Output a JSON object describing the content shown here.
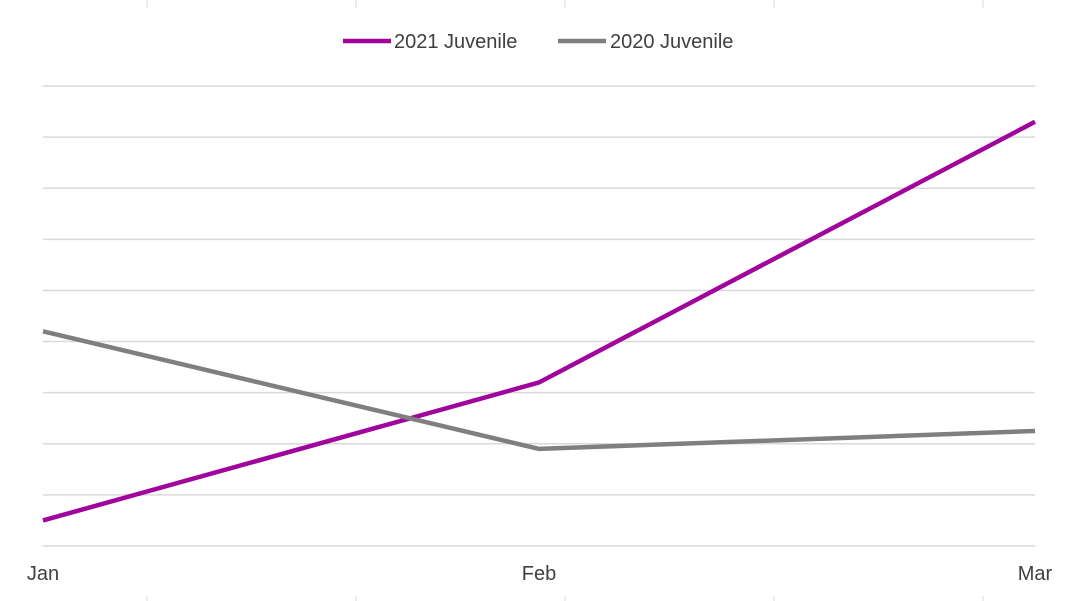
{
  "chart_data": {
    "type": "line",
    "categories": [
      "Jan",
      "Feb",
      "Mar"
    ],
    "series": [
      {
        "name": "2021 Juvenile",
        "color": "#a0049c",
        "values": [
          0.5,
          3.2,
          8.3
        ]
      },
      {
        "name": "2020 Juvenile",
        "color": "#7f7f7f",
        "values": [
          4.2,
          1.9,
          2.25
        ]
      }
    ],
    "ylim": [
      0,
      9
    ],
    "y_gridlines": 10,
    "legend_position": "top-center",
    "title": "",
    "xlabel": "",
    "ylabel": ""
  }
}
